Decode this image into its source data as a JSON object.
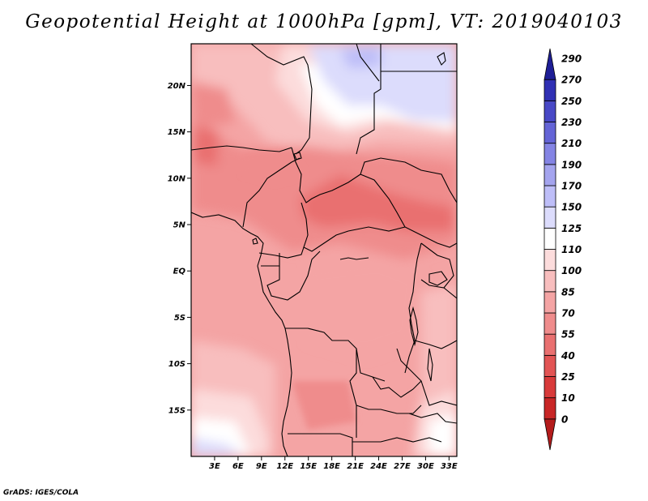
{
  "chart_data": {
    "type": "heatmap",
    "title": "Geopotential Height at 1000hPa [gpm], VT: 2019040103",
    "variable": "Geopotential Height",
    "level": "1000hPa",
    "units": "gpm",
    "valid_time": "2019040103",
    "x_ticks": [
      "3E",
      "6E",
      "9E",
      "12E",
      "15E",
      "18E",
      "21E",
      "24E",
      "27E",
      "30E",
      "33E"
    ],
    "x_tick_values": [
      3,
      6,
      9,
      12,
      15,
      18,
      21,
      24,
      27,
      30,
      33
    ],
    "y_ticks": [
      "20N",
      "15N",
      "10N",
      "5N",
      "EQ",
      "5S",
      "10S",
      "15S"
    ],
    "y_tick_values": [
      20,
      15,
      10,
      5,
      0,
      -5,
      -10,
      -15
    ],
    "lon_range": [
      0,
      34
    ],
    "lat_range": [
      -20,
      24.5
    ],
    "colorbar": {
      "levels": [
        "0",
        "10",
        "25",
        "40",
        "55",
        "70",
        "85",
        "100",
        "110",
        "125",
        "150",
        "170",
        "190",
        "210",
        "230",
        "250",
        "270",
        "290"
      ],
      "level_values": [
        0,
        10,
        25,
        40,
        55,
        70,
        85,
        100,
        110,
        125,
        150,
        170,
        190,
        210,
        230,
        250,
        270,
        290
      ],
      "colors": [
        "#b41c1c",
        "#c82626",
        "#d83a3a",
        "#e25454",
        "#e97070",
        "#ef8c8c",
        "#f4a4a4",
        "#f8bebe",
        "#fcdcdc",
        "#ffffff",
        "#dcdcfc",
        "#bebef8",
        "#a4a4ee",
        "#8484e4",
        "#6464d6",
        "#4848c6",
        "#3030b4",
        "#1e1e96"
      ]
    }
  },
  "footer": {
    "credit": "GrADS: IGES/COLA"
  }
}
